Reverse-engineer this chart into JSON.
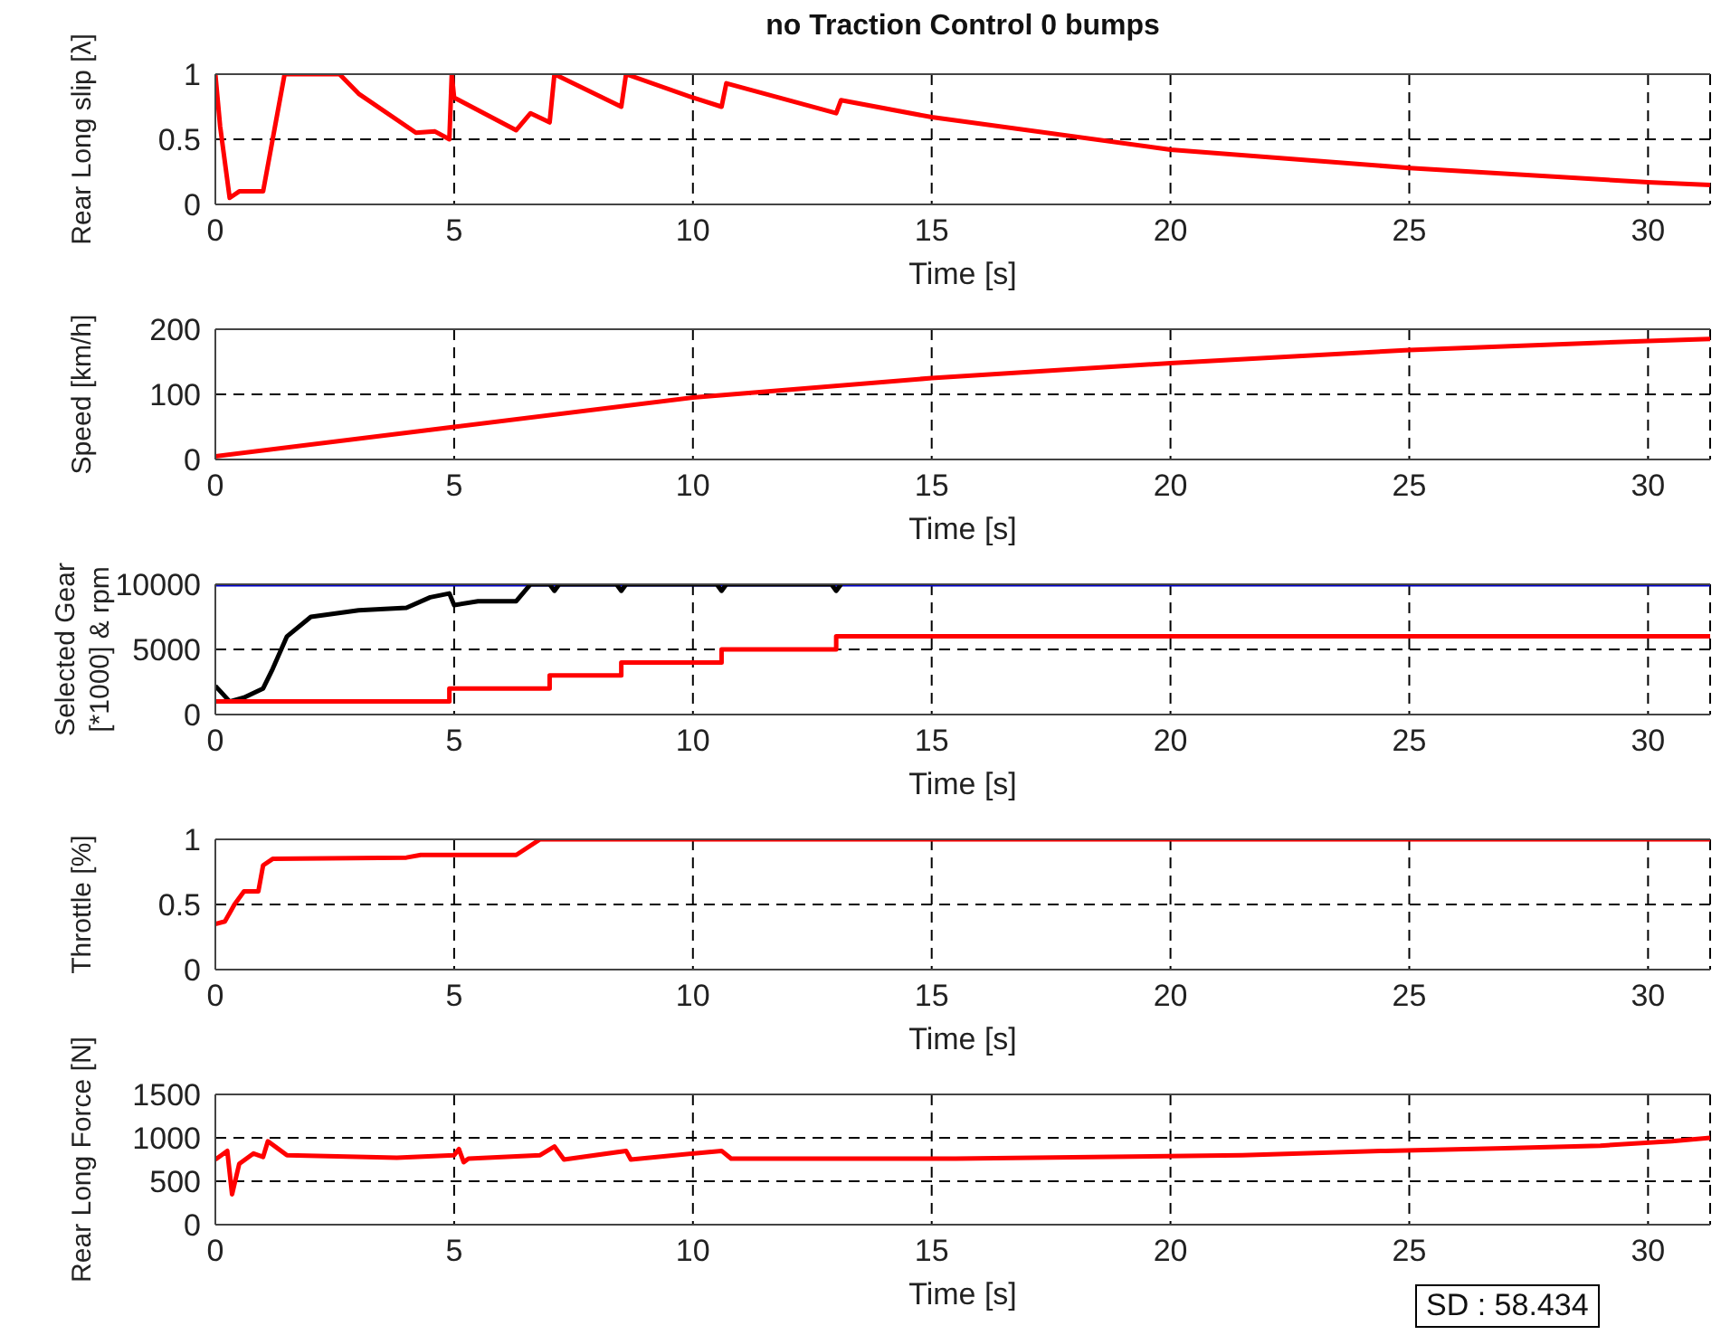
{
  "chart_data": [
    {
      "type": "line",
      "title": "no Traction Control 0 bumps",
      "xlabel": "Time [s]",
      "ylabel": "Rear Long slip [λ]",
      "xlim": [
        0,
        31.3
      ],
      "xticks": [
        0,
        5,
        10,
        15,
        20,
        25,
        30
      ],
      "ylim": [
        0,
        1
      ],
      "yticks": [
        0,
        0.5,
        1
      ],
      "grid": true,
      "series": [
        {
          "color": "#ff0000",
          "x": [
            0,
            0.1,
            0.3,
            0.5,
            1.0,
            1.2,
            1.45,
            2.6,
            3,
            4.2,
            4.6,
            4.9,
            4.95,
            5,
            6.3,
            6.6,
            7.0,
            7.1,
            8.5,
            8.6,
            10,
            10.6,
            10.7,
            13,
            13.1,
            15,
            20,
            25,
            30,
            31.3
          ],
          "values": [
            1,
            0.6,
            0.05,
            0.1,
            0.1,
            0.5,
            1,
            1,
            0.85,
            0.55,
            0.56,
            0.5,
            1,
            0.82,
            0.57,
            0.7,
            0.63,
            1,
            0.75,
            1,
            0.82,
            0.75,
            0.93,
            0.7,
            0.8,
            0.67,
            0.42,
            0.28,
            0.17,
            0.15
          ]
        }
      ]
    },
    {
      "type": "line",
      "xlabel": "Time [s]",
      "ylabel": "Speed [km/h]",
      "xlim": [
        0,
        31.3
      ],
      "xticks": [
        0,
        5,
        10,
        15,
        20,
        25,
        30
      ],
      "ylim": [
        0,
        200
      ],
      "yticks": [
        0,
        100,
        200
      ],
      "grid": true,
      "series": [
        {
          "color": "#ff0000",
          "x": [
            0,
            5,
            10,
            15,
            20,
            25,
            30,
            31.3
          ],
          "values": [
            5,
            50,
            95,
            125,
            148,
            168,
            182,
            185
          ]
        }
      ]
    },
    {
      "type": "line",
      "xlabel": "Time [s]",
      "ylabel": "Selected Gear\n[*1000] & rpm",
      "xlim": [
        0,
        31.3
      ],
      "xticks": [
        0,
        5,
        10,
        15,
        20,
        25,
        30
      ],
      "ylim": [
        0,
        10000
      ],
      "yticks": [
        0,
        5000,
        10000
      ],
      "grid": true,
      "series": [
        {
          "color": "#0000cc",
          "x": [
            0,
            31.3
          ],
          "values": [
            10000,
            10000
          ]
        },
        {
          "color": "#000000",
          "x": [
            0,
            0.3,
            0.6,
            1.0,
            1.2,
            1.5,
            2,
            3,
            4,
            4.5,
            4.9,
            5,
            5.5,
            6.3,
            6.6,
            7.0,
            7.1,
            7.2,
            8.4,
            8.5,
            8.6,
            10.5,
            10.6,
            10.7,
            12.9,
            13,
            13.1
          ],
          "values": [
            2200,
            1000,
            1300,
            2000,
            3500,
            6000,
            7500,
            8000,
            8200,
            9000,
            9300,
            8400,
            8700,
            8700,
            10000,
            10000,
            9500,
            10000,
            10000,
            9500,
            10000,
            10000,
            9500,
            10000,
            10000,
            9500,
            10000
          ]
        },
        {
          "type": "step",
          "color": "#ff0000",
          "x": [
            0,
            4.9,
            7.0,
            8.5,
            10.6,
            13,
            31.3
          ],
          "values": [
            1000,
            2000,
            3000,
            4000,
            5000,
            6000,
            6000
          ]
        }
      ]
    },
    {
      "type": "line",
      "xlabel": "Time [s]",
      "ylabel": "Throttle [%]",
      "xlim": [
        0,
        31.3
      ],
      "xticks": [
        0,
        5,
        10,
        15,
        20,
        25,
        30
      ],
      "ylim": [
        0,
        1
      ],
      "yticks": [
        0,
        0.5,
        1
      ],
      "grid": true,
      "series": [
        {
          "color": "#ff0000",
          "x": [
            0,
            0.2,
            0.4,
            0.6,
            0.9,
            1,
            1.2,
            4,
            4.3,
            6.3,
            6.8,
            31.3
          ],
          "values": [
            0.35,
            0.37,
            0.5,
            0.6,
            0.6,
            0.8,
            0.85,
            0.86,
            0.88,
            0.88,
            1,
            1
          ]
        }
      ]
    },
    {
      "type": "line",
      "xlabel": "Time [s]",
      "ylabel": "Rear Long Force [N]",
      "xlim": [
        0,
        31.3
      ],
      "xticks": [
        0,
        5,
        10,
        15,
        20,
        25,
        30
      ],
      "ylim": [
        0,
        1500
      ],
      "yticks": [
        0,
        500,
        1000,
        1500
      ],
      "grid": true,
      "annotations": [
        "SD : 58.434"
      ],
      "series": [
        {
          "color": "#ff0000",
          "x": [
            0,
            0.25,
            0.35,
            0.5,
            0.8,
            1.0,
            1.1,
            1.5,
            3.8,
            5,
            5.1,
            5.2,
            5.3,
            6.8,
            7.1,
            7.3,
            8.6,
            8.7,
            10.6,
            10.8,
            15.5,
            21.5,
            24.5,
            27,
            29,
            30.5,
            31.3
          ],
          "values": [
            750,
            850,
            350,
            700,
            820,
            780,
            960,
            800,
            770,
            800,
            870,
            720,
            760,
            800,
            900,
            750,
            850,
            750,
            850,
            760,
            760,
            800,
            850,
            880,
            910,
            960,
            1000
          ]
        }
      ]
    }
  ]
}
